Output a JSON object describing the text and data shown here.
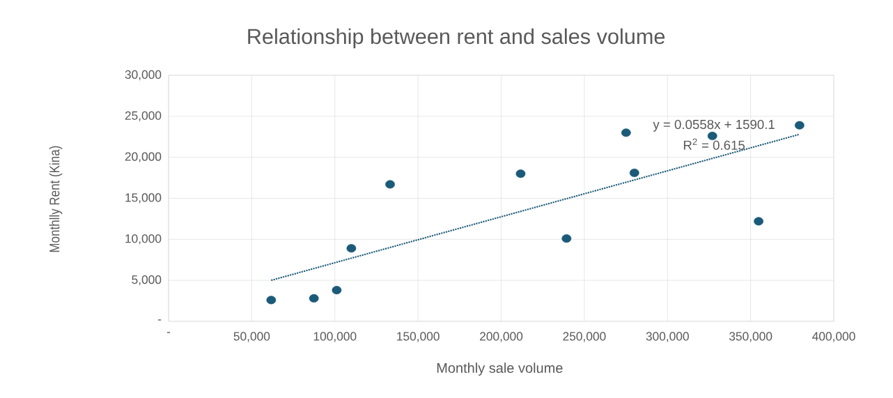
{
  "chart_data": {
    "type": "scatter",
    "title": "Relationship between rent and sales volume",
    "xlabel": "Monthly sale volume",
    "ylabel": "Monthlly Rent (Kina)",
    "series": [
      {
        "color": "#1b5a78",
        "marker": "circle",
        "x": [
          61700,
          87400,
          101100,
          109900,
          133200,
          211700,
          239300,
          275100,
          280100,
          327000,
          354800,
          379400
        ],
        "values": [
          2600,
          2800,
          3800,
          8900,
          16700,
          18000,
          10100,
          23000,
          18100,
          22600,
          12200,
          23900
        ]
      },
      {
        "type": "line",
        "color": "#1b5a78",
        "line_style": "dotted",
        "marker": "none",
        "x": [
          61700,
          379400
        ],
        "values": [
          5000,
          22800
        ]
      }
    ],
    "xlim": [
      0,
      400000
    ],
    "ylim": [
      0,
      30000
    ],
    "xticks": [
      {
        "value": 0,
        "label": "-"
      },
      {
        "value": 50000,
        "label": "50,000"
      },
      {
        "value": 100000,
        "label": "100,000"
      },
      {
        "value": 150000,
        "label": "150,000"
      },
      {
        "value": 200000,
        "label": "200,000"
      },
      {
        "value": 250000,
        "label": "250,000"
      },
      {
        "value": 300000,
        "label": "300,000"
      },
      {
        "value": 350000,
        "label": "350,000"
      },
      {
        "value": 400000,
        "label": "400,000"
      }
    ],
    "yticks": [
      {
        "value": 0,
        "label": "-"
      },
      {
        "value": 5000,
        "label": "5,000"
      },
      {
        "value": 10000,
        "label": "10,000"
      },
      {
        "value": 15000,
        "label": "15,000"
      },
      {
        "value": 20000,
        "label": "20,000"
      },
      {
        "value": 25000,
        "label": "25,000"
      },
      {
        "value": 30000,
        "label": "30,000"
      }
    ],
    "annotations": [
      "y = 0.0558x  + 1590.1",
      "R$^{2}$ = 0.615"
    ],
    "grid": true
  }
}
